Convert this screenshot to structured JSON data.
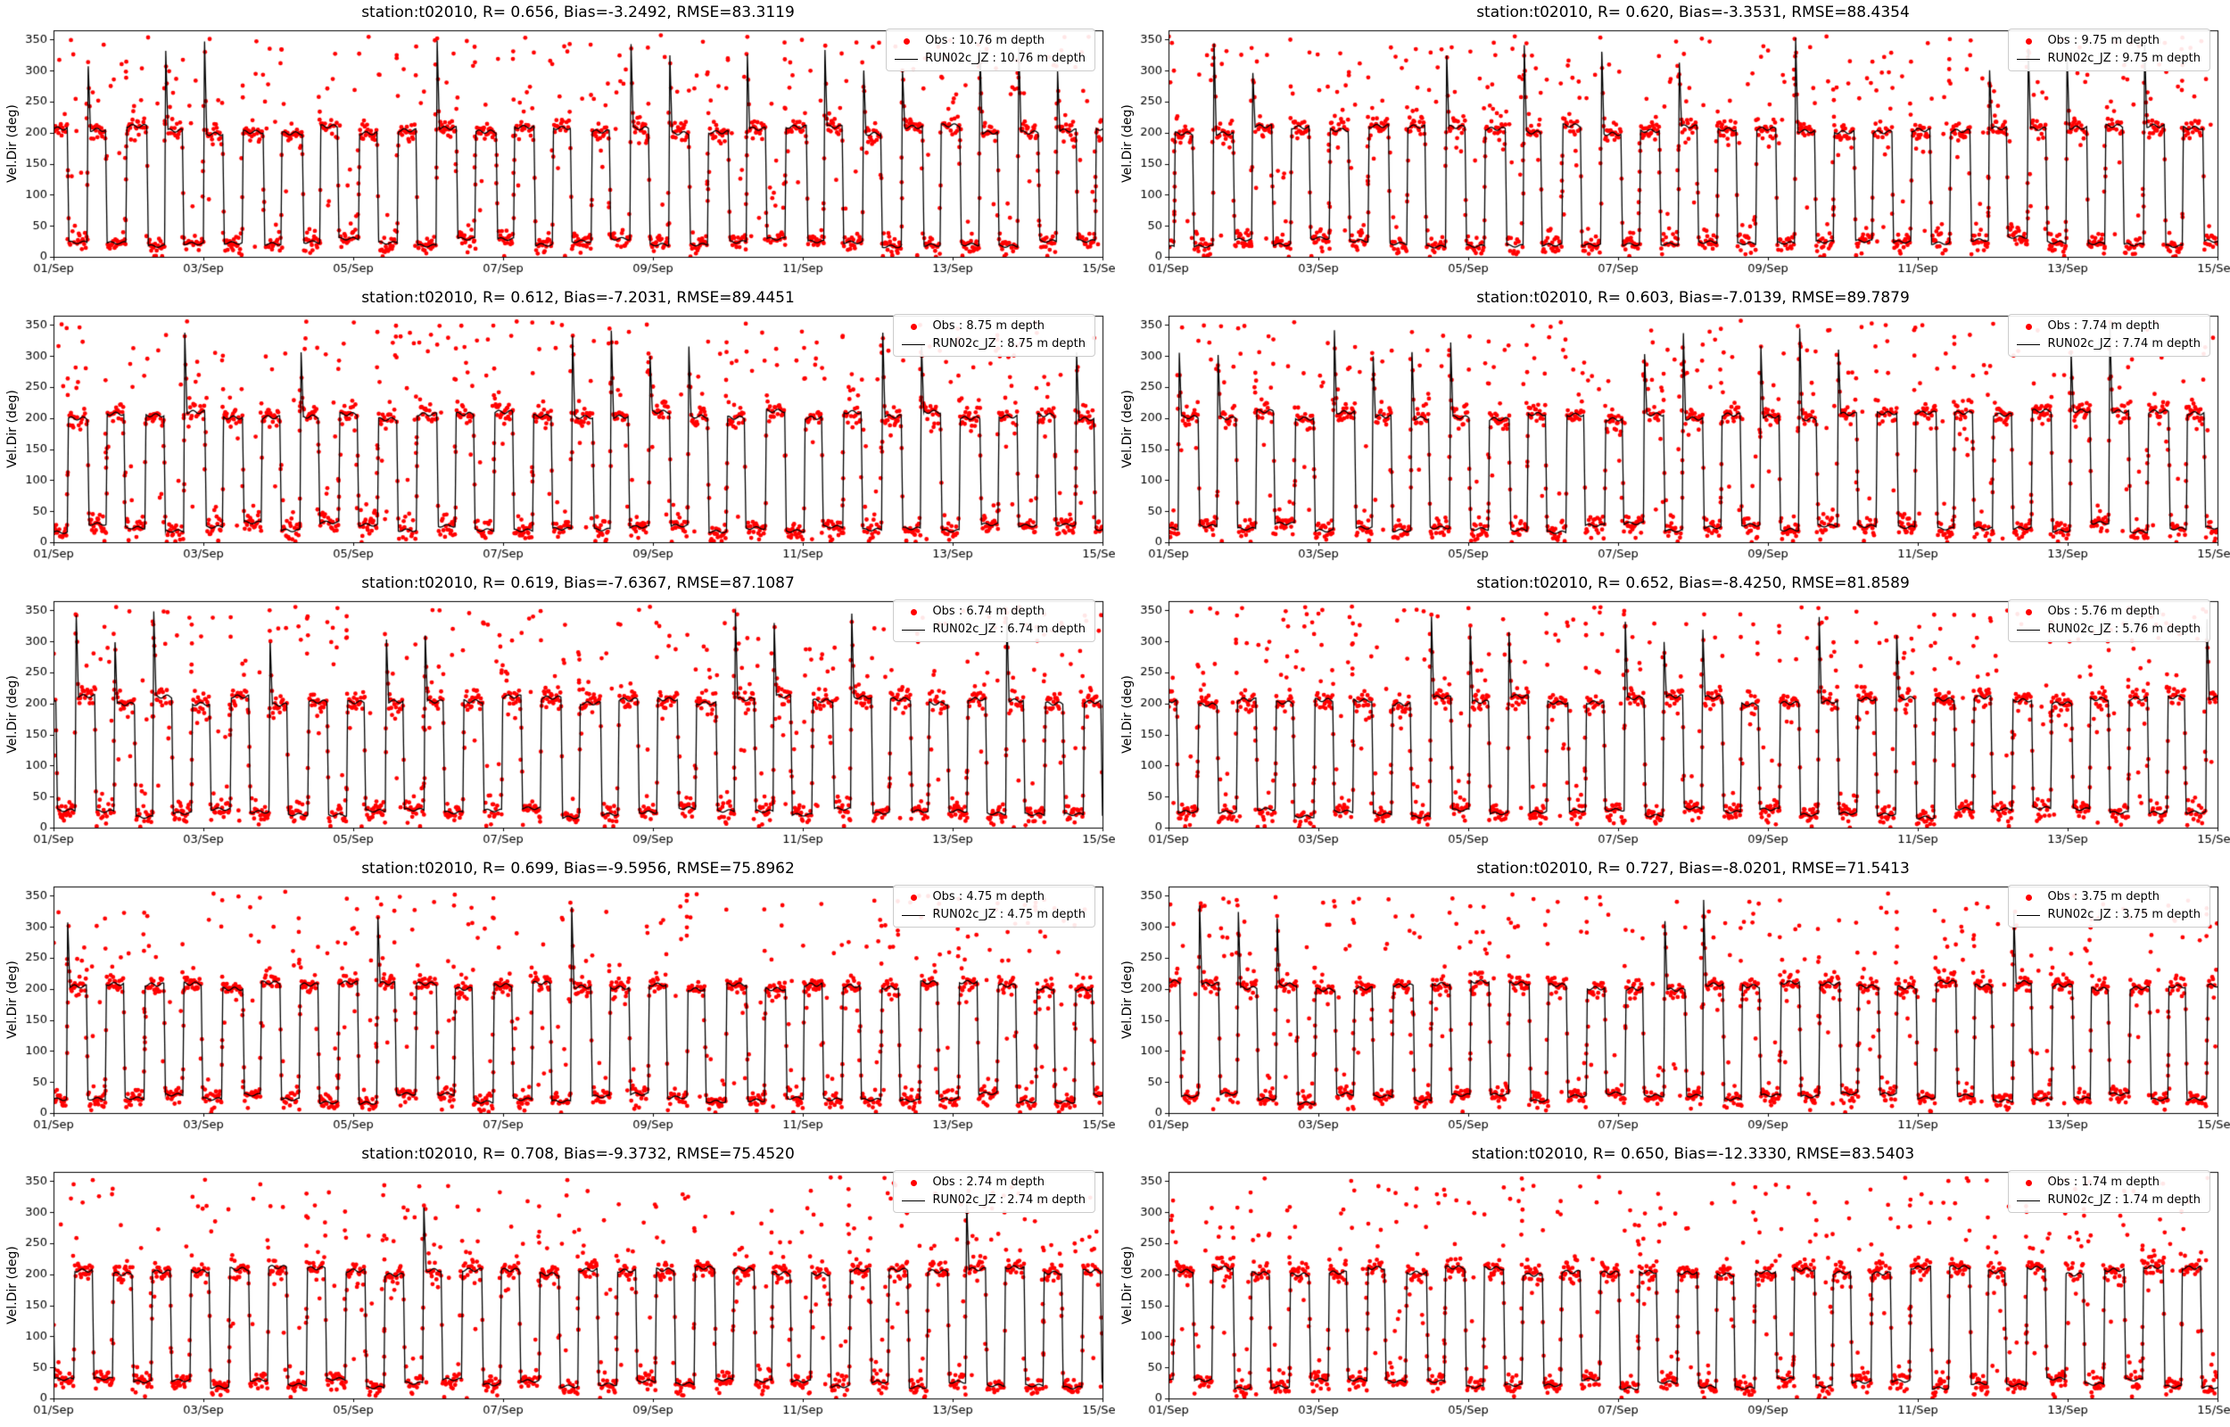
{
  "figure": {
    "background": "#ffffff",
    "station_id": "t02010",
    "rows": 5,
    "cols": 2
  },
  "chart_data": {
    "type": "line",
    "title": "",
    "xlabel": "",
    "ylabel": "Vel.Dir (deg)",
    "ylim": [
      0,
      365
    ],
    "xlim_days": [
      0,
      14
    ],
    "grid": "off",
    "legend_position": "upper right",
    "xtick_labels": [
      "01/Sep",
      "03/Sep",
      "05/Sep",
      "07/Sep",
      "09/Sep",
      "11/Sep",
      "13/Sep",
      "15/Sep"
    ],
    "xtick_days": [
      0,
      2,
      4,
      6,
      8,
      10,
      12,
      14
    ],
    "ytick_labels": [
      "0",
      "50",
      "100",
      "150",
      "200",
      "250",
      "300",
      "350"
    ],
    "ytick_values": [
      0,
      50,
      100,
      150,
      200,
      250,
      300,
      350
    ],
    "series_colors": {
      "obs": "#ff0000",
      "model": "#000000"
    },
    "axis_color": "#000000",
    "legend_edge_color": "#cccccc",
    "pattern": {
      "description": "Semidiurnal tidal flow reversal: model direction alternates between ~205 deg (flood plateau) and ~25 deg (ebb plateau) with sharp transitions and occasional narrow spikes up to ~350 deg; observations scatter around the model with outliers up to 350 deg concentrated at reversals.",
      "period_days": 0.5175,
      "high_level_deg": 205,
      "low_level_deg": 25,
      "spike_max_deg": 355
    },
    "subplots": [
      {
        "title": "station:t02010, R= 0.656, Bias=-3.2492, RMSE=83.3119",
        "r": 0.656,
        "bias": -3.2492,
        "rmse": 83.3119,
        "depth_m": 10.76,
        "obs_label": "Obs : 10.76 m depth",
        "model_label": "RUN02c_JZ : 10.76 m depth",
        "seed": 1,
        "spike_prob": 0.45
      },
      {
        "title": "station:t02010, R= 0.620, Bias=-3.3531, RMSE=88.4354",
        "r": 0.62,
        "bias": -3.3531,
        "rmse": 88.4354,
        "depth_m": 9.75,
        "obs_label": "Obs : 9.75 m depth",
        "model_label": "RUN02c_JZ : 9.75 m depth",
        "seed": 2,
        "spike_prob": 0.45
      },
      {
        "title": "station:t02010, R= 0.612, Bias=-7.2031, RMSE=89.4451",
        "r": 0.612,
        "bias": -7.2031,
        "rmse": 89.4451,
        "depth_m": 8.75,
        "obs_label": "Obs : 8.75 m depth",
        "model_label": "RUN02c_JZ : 8.75 m depth",
        "seed": 3,
        "spike_prob": 0.45
      },
      {
        "title": "station:t02010, R= 0.603, Bias=-7.0139, RMSE=89.7879",
        "r": 0.603,
        "bias": -7.0139,
        "rmse": 89.7879,
        "depth_m": 7.74,
        "obs_label": "Obs : 7.74 m depth",
        "model_label": "RUN02c_JZ : 7.74 m depth",
        "seed": 4,
        "spike_prob": 0.45
      },
      {
        "title": "station:t02010, R= 0.619, Bias=-7.6367, RMSE=87.1087",
        "r": 0.619,
        "bias": -7.6367,
        "rmse": 87.1087,
        "depth_m": 6.74,
        "obs_label": "Obs : 6.74 m depth",
        "model_label": "RUN02c_JZ : 6.74 m depth",
        "seed": 5,
        "spike_prob": 0.4
      },
      {
        "title": "station:t02010, R= 0.652, Bias=-8.4250, RMSE=81.8589",
        "r": 0.652,
        "bias": -8.425,
        "rmse": 81.8589,
        "depth_m": 5.76,
        "obs_label": "Obs : 5.76 m depth",
        "model_label": "RUN02c_JZ : 5.76 m depth",
        "seed": 6,
        "spike_prob": 0.35
      },
      {
        "title": "station:t02010, R= 0.699, Bias=-9.5956, RMSE=75.8962",
        "r": 0.699,
        "bias": -9.5956,
        "rmse": 75.8962,
        "depth_m": 4.75,
        "obs_label": "Obs : 4.75 m depth",
        "model_label": "RUN02c_JZ : 4.75 m depth",
        "seed": 7,
        "spike_prob": 0.22
      },
      {
        "title": "station:t02010, R= 0.727, Bias=-8.0201, RMSE=71.5413",
        "r": 0.727,
        "bias": -8.0201,
        "rmse": 71.5413,
        "depth_m": 3.75,
        "obs_label": "Obs : 3.75 m depth",
        "model_label": "RUN02c_JZ : 3.75 m depth",
        "seed": 8,
        "spike_prob": 0.22
      },
      {
        "title": "station:t02010, R= 0.708, Bias=-9.3732, RMSE=75.4520",
        "r": 0.708,
        "bias": -9.3732,
        "rmse": 75.452,
        "depth_m": 2.74,
        "obs_label": "Obs : 2.74 m depth",
        "model_label": "RUN02c_JZ : 2.74 m depth",
        "seed": 9,
        "spike_prob": 0.07
      },
      {
        "title": "station:t02010, R= 0.650, Bias=-12.3330, RMSE=83.5403",
        "r": 0.65,
        "bias": -12.333,
        "rmse": 83.5403,
        "depth_m": 1.74,
        "obs_label": "Obs : 1.74 m depth",
        "model_label": "RUN02c_JZ : 1.74 m depth",
        "seed": 10,
        "spike_prob": 0.07
      }
    ]
  }
}
